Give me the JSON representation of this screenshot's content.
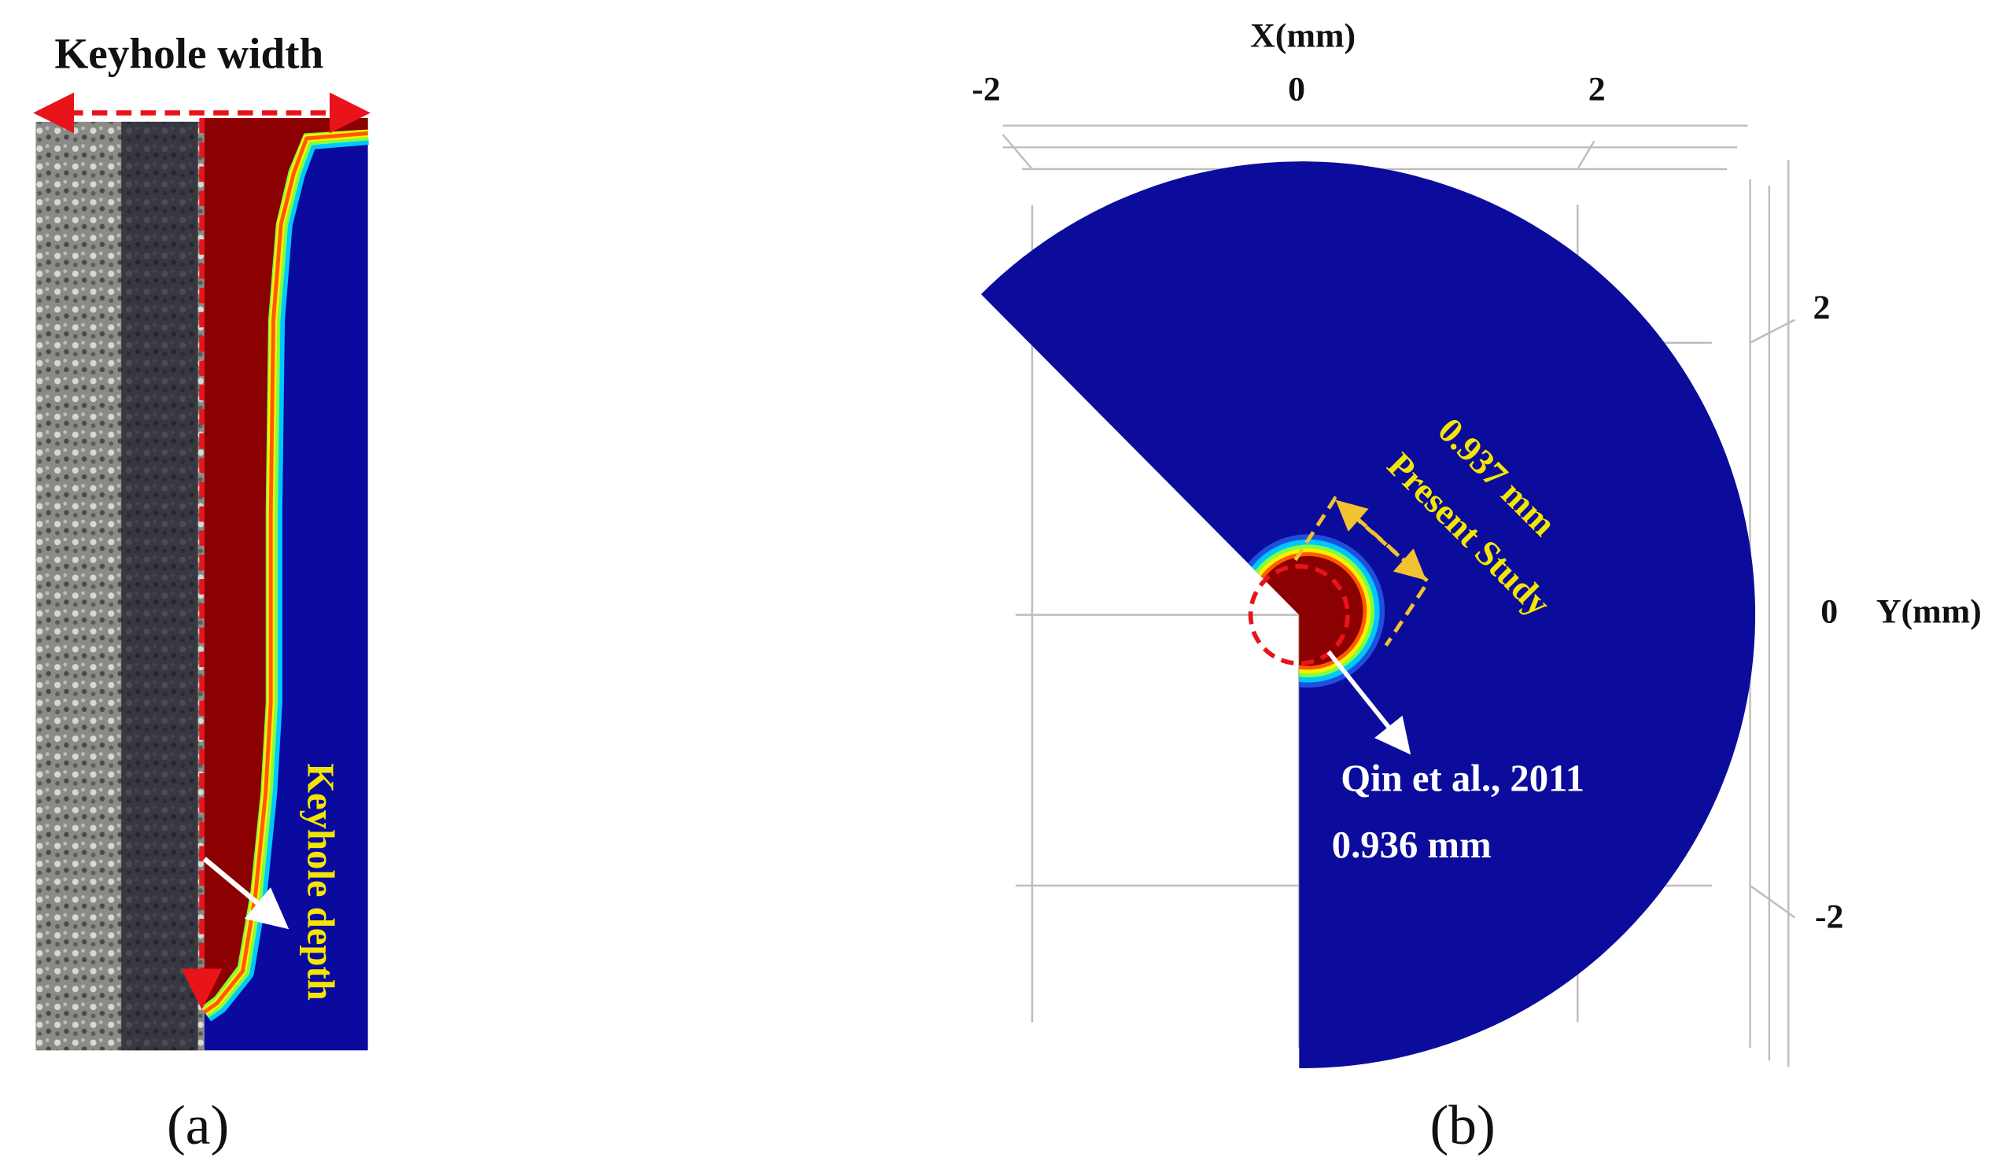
{
  "panel_a": {
    "title": "Keyhole width",
    "annotation": "Keyhole depth",
    "label": "(a)"
  },
  "panel_b": {
    "x_axis_label": "X(mm)",
    "x_tick_labels": [
      "-2",
      "0",
      "2"
    ],
    "y_axis_label": "Y(mm)",
    "y_tick_labels": [
      "2",
      "0",
      "-2"
    ],
    "present_value": "0.937 mm",
    "present_label": "Present Study",
    "reference_label": "Qin et al., 2011",
    "reference_value": "0.936 mm",
    "label": "(b)"
  }
}
